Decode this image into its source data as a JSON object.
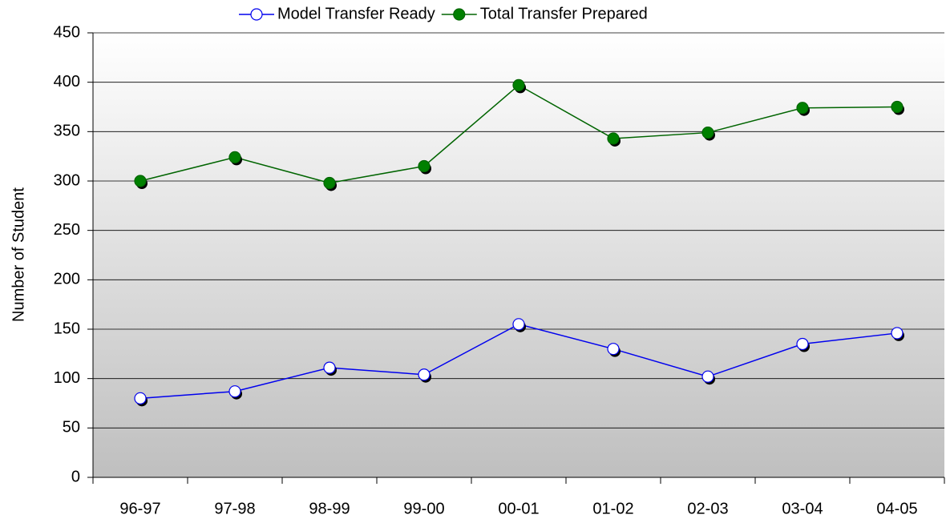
{
  "chart_data": {
    "type": "line",
    "y_label": "Number of Student",
    "categories": [
      "96-97",
      "97-98",
      "98-99",
      "99-00",
      "00-01",
      "01-02",
      "02-03",
      "03-04",
      "04-05"
    ],
    "series": [
      {
        "name": "Model Transfer Ready",
        "color": "#0000ee",
        "marker_fill": "#ffffff",
        "values": [
          80,
          87,
          111,
          104,
          155,
          130,
          102,
          135,
          146
        ]
      },
      {
        "name": "Total Transfer Prepared",
        "color": "#006400",
        "marker_fill": "#008000",
        "values": [
          300,
          324,
          298,
          315,
          397,
          343,
          349,
          374,
          375
        ]
      }
    ],
    "ylim": [
      0,
      450
    ],
    "yticks": [
      0,
      50,
      100,
      150,
      200,
      250,
      300,
      350,
      400,
      450
    ],
    "grid": true,
    "legend": "top"
  }
}
